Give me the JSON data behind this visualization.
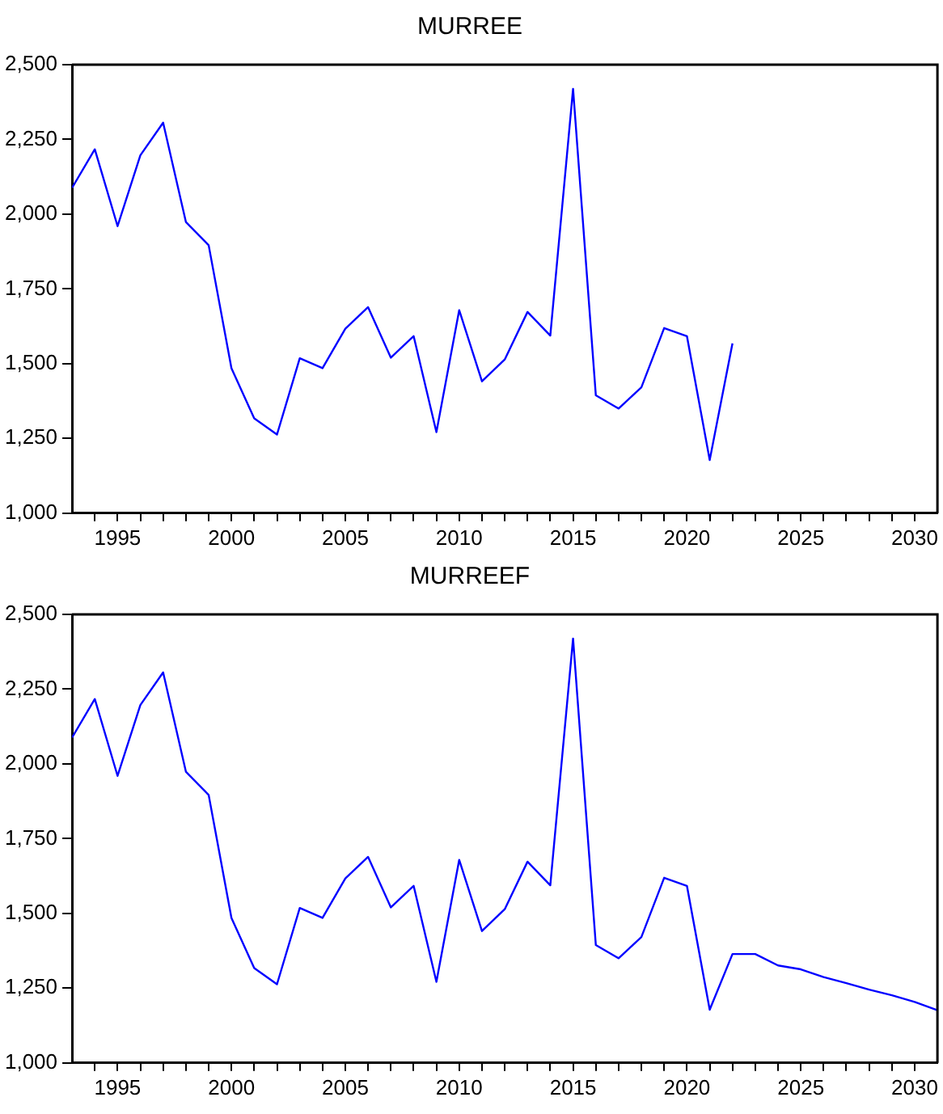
{
  "chart_data": [
    {
      "type": "line",
      "title": "MURREE",
      "x": [
        1993,
        1994,
        1995,
        1996,
        1997,
        1998,
        1999,
        2000,
        2001,
        2002,
        2003,
        2004,
        2005,
        2006,
        2007,
        2008,
        2009,
        2010,
        2011,
        2012,
        2013,
        2014,
        2015,
        2016,
        2017,
        2018,
        2019,
        2020,
        2021,
        2022
      ],
      "series": [
        {
          "color": "#0000ff",
          "values": [
            2088,
            2217,
            1960,
            2197,
            2306,
            1974,
            1896,
            1485,
            1317,
            1263,
            1518,
            1485,
            1617,
            1689,
            1520,
            1592,
            1271,
            1679,
            1441,
            1514,
            1673,
            1594,
            2419,
            1394,
            1350,
            1421,
            1619,
            1592,
            1178,
            1568
          ]
        }
      ],
      "xlim": [
        1993,
        2031
      ],
      "xticks": [
        {
          "value": 1994,
          "label": null
        },
        1995,
        {
          "value": 1996,
          "label": null
        },
        {
          "value": 1997,
          "label": null
        },
        {
          "value": 1998,
          "label": null
        },
        {
          "value": 1999,
          "label": null
        },
        2000,
        {
          "value": 2001,
          "label": null
        },
        {
          "value": 2002,
          "label": null
        },
        {
          "value": 2003,
          "label": null
        },
        {
          "value": 2004,
          "label": null
        },
        2005,
        {
          "value": 2006,
          "label": null
        },
        {
          "value": 2007,
          "label": null
        },
        {
          "value": 2008,
          "label": null
        },
        {
          "value": 2009,
          "label": null
        },
        2010,
        {
          "value": 2011,
          "label": null
        },
        {
          "value": 2012,
          "label": null
        },
        {
          "value": 2013,
          "label": null
        },
        {
          "value": 2014,
          "label": null
        },
        2015,
        {
          "value": 2016,
          "label": null
        },
        {
          "value": 2017,
          "label": null
        },
        {
          "value": 2018,
          "label": null
        },
        {
          "value": 2019,
          "label": null
        },
        2020,
        {
          "value": 2021,
          "label": null
        },
        {
          "value": 2022,
          "label": null
        },
        {
          "value": 2023,
          "label": null
        },
        {
          "value": 2024,
          "label": null
        },
        2025,
        {
          "value": 2026,
          "label": null
        },
        {
          "value": 2027,
          "label": null
        },
        {
          "value": 2028,
          "label": null
        },
        {
          "value": 2029,
          "label": null
        },
        2030
      ],
      "ylim": [
        1000,
        2500
      ],
      "yticks": [
        {
          "value": 1000,
          "label": "1,000"
        },
        {
          "value": 1250,
          "label": "1,250"
        },
        {
          "value": 1500,
          "label": "1,500"
        },
        {
          "value": 1750,
          "label": "1,750"
        },
        {
          "value": 2000,
          "label": "2,000"
        },
        {
          "value": 2250,
          "label": "2,250"
        },
        {
          "value": 2500,
          "label": "2,500"
        }
      ],
      "grid": false,
      "legend": false,
      "marker": "none",
      "line_style": "solid"
    },
    {
      "type": "line",
      "title": "MURREEF",
      "x": [
        1993,
        1994,
        1995,
        1996,
        1997,
        1998,
        1999,
        2000,
        2001,
        2002,
        2003,
        2004,
        2005,
        2006,
        2007,
        2008,
        2009,
        2010,
        2011,
        2012,
        2013,
        2014,
        2015,
        2016,
        2017,
        2018,
        2019,
        2020,
        2021,
        2022,
        2023,
        2024,
        2025,
        2026,
        2027,
        2028,
        2029,
        2030,
        2031
      ],
      "series": [
        {
          "color": "#0000ff",
          "values": [
            2088,
            2217,
            1960,
            2197,
            2306,
            1974,
            1896,
            1485,
            1317,
            1263,
            1518,
            1485,
            1617,
            1689,
            1520,
            1592,
            1271,
            1679,
            1441,
            1514,
            1673,
            1594,
            2419,
            1394,
            1350,
            1421,
            1619,
            1592,
            1178,
            1364,
            1364,
            1326,
            1313,
            1287,
            1267,
            1245,
            1226,
            1204,
            1176
          ]
        }
      ],
      "xlim": [
        1993,
        2031
      ],
      "xticks": [
        {
          "value": 1994,
          "label": null
        },
        1995,
        {
          "value": 1996,
          "label": null
        },
        {
          "value": 1997,
          "label": null
        },
        {
          "value": 1998,
          "label": null
        },
        {
          "value": 1999,
          "label": null
        },
        2000,
        {
          "value": 2001,
          "label": null
        },
        {
          "value": 2002,
          "label": null
        },
        {
          "value": 2003,
          "label": null
        },
        {
          "value": 2004,
          "label": null
        },
        2005,
        {
          "value": 2006,
          "label": null
        },
        {
          "value": 2007,
          "label": null
        },
        {
          "value": 2008,
          "label": null
        },
        {
          "value": 2009,
          "label": null
        },
        2010,
        {
          "value": 2011,
          "label": null
        },
        {
          "value": 2012,
          "label": null
        },
        {
          "value": 2013,
          "label": null
        },
        {
          "value": 2014,
          "label": null
        },
        2015,
        {
          "value": 2016,
          "label": null
        },
        {
          "value": 2017,
          "label": null
        },
        {
          "value": 2018,
          "label": null
        },
        {
          "value": 2019,
          "label": null
        },
        2020,
        {
          "value": 2021,
          "label": null
        },
        {
          "value": 2022,
          "label": null
        },
        {
          "value": 2023,
          "label": null
        },
        {
          "value": 2024,
          "label": null
        },
        2025,
        {
          "value": 2026,
          "label": null
        },
        {
          "value": 2027,
          "label": null
        },
        {
          "value": 2028,
          "label": null
        },
        {
          "value": 2029,
          "label": null
        },
        2030
      ],
      "ylim": [
        1000,
        2500
      ],
      "yticks": [
        {
          "value": 1000,
          "label": "1,000"
        },
        {
          "value": 1250,
          "label": "1,250"
        },
        {
          "value": 1500,
          "label": "1,500"
        },
        {
          "value": 1750,
          "label": "1,750"
        },
        {
          "value": 2000,
          "label": "2,000"
        },
        {
          "value": 2250,
          "label": "2,250"
        },
        {
          "value": 2500,
          "label": "2,500"
        }
      ],
      "grid": false,
      "legend": false,
      "marker": "none",
      "line_style": "solid"
    }
  ]
}
